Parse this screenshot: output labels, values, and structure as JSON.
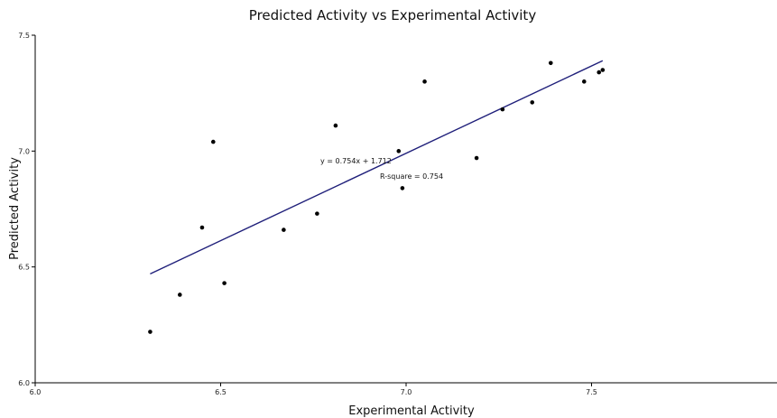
{
  "chart_data": {
    "type": "scatter",
    "title": "Predicted Activity vs Experimental Activity",
    "xlabel": "Experimental Activity",
    "ylabel": "Predicted Activity",
    "xlim": [
      6.0,
      8.0
    ],
    "ylim": [
      6.0,
      7.5
    ],
    "x_ticks": [
      "6.0",
      "6.5",
      "7.0",
      "7.5"
    ],
    "y_ticks": [
      "6.0",
      "6.5",
      "7.0",
      "7.5"
    ],
    "grid": false,
    "series": [
      {
        "points": [
          {
            "x": 6.31,
            "y": 6.22
          },
          {
            "x": 6.39,
            "y": 6.38
          },
          {
            "x": 6.45,
            "y": 6.67
          },
          {
            "x": 6.48,
            "y": 7.04
          },
          {
            "x": 6.51,
            "y": 6.43
          },
          {
            "x": 6.67,
            "y": 6.66
          },
          {
            "x": 6.76,
            "y": 6.73
          },
          {
            "x": 6.81,
            "y": 7.11
          },
          {
            "x": 6.98,
            "y": 7.0
          },
          {
            "x": 6.99,
            "y": 6.84
          },
          {
            "x": 7.05,
            "y": 7.3
          },
          {
            "x": 7.19,
            "y": 6.97
          },
          {
            "x": 7.26,
            "y": 7.18
          },
          {
            "x": 7.34,
            "y": 7.21
          },
          {
            "x": 7.39,
            "y": 7.38
          },
          {
            "x": 7.48,
            "y": 7.3
          },
          {
            "x": 7.52,
            "y": 7.34
          },
          {
            "x": 7.53,
            "y": 7.35
          }
        ]
      }
    ],
    "trendline": {
      "x_start": 6.31,
      "x_end": 7.53,
      "y_start": 6.47,
      "y_end": 7.39,
      "color": "#1f1f7a"
    },
    "annotations": {
      "equation": "y = 0.754x + 1.712",
      "r_square": "R-square = 0.754"
    },
    "colors": {
      "points": "#000000",
      "axis": "#000000"
    }
  }
}
